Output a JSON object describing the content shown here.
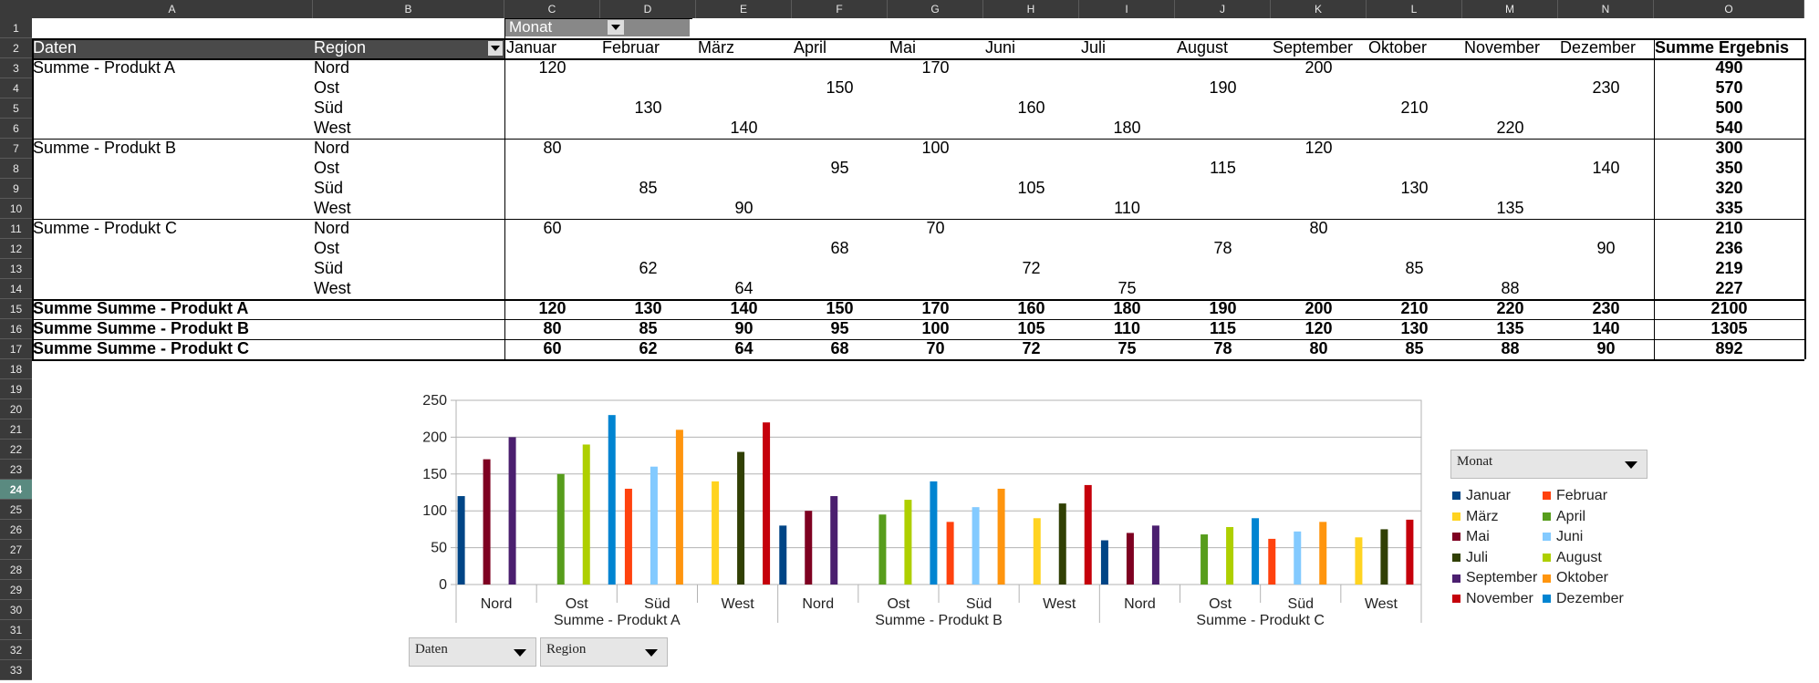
{
  "column_headers": [
    "A",
    "B",
    "C",
    "D",
    "E",
    "F",
    "G",
    "H",
    "I",
    "J",
    "K",
    "L",
    "M",
    "N",
    "O"
  ],
  "row_headers": [
    "1",
    "2",
    "3",
    "4",
    "5",
    "6",
    "7",
    "8",
    "9",
    "10",
    "11",
    "12",
    "13",
    "14",
    "15",
    "16",
    "17",
    "18",
    "19",
    "20",
    "21",
    "22",
    "23",
    "24",
    "25",
    "26",
    "27",
    "28",
    "29",
    "30",
    "31",
    "32",
    "33"
  ],
  "active_row": "24",
  "pivot": {
    "page_field": "Monat",
    "data_label": "Daten",
    "region_label": "Region",
    "months": [
      "Januar",
      "Februar",
      "März",
      "April",
      "Mai",
      "Juni",
      "Juli",
      "August",
      "September",
      "Oktober",
      "November",
      "Dezember"
    ],
    "total_label": "Summe Ergebnis",
    "groups": [
      {
        "label": "Summe - Produkt A",
        "rows": [
          {
            "region": "Nord",
            "cells": [
              "120",
              "",
              "",
              "",
              "170",
              "",
              "",
              "",
              "200",
              "",
              "",
              ""
            ],
            "total": "490"
          },
          {
            "region": "Ost",
            "cells": [
              "",
              "",
              "",
              "150",
              "",
              "",
              "",
              "190",
              "",
              "",
              "",
              "230"
            ],
            "total": "570"
          },
          {
            "region": "Süd",
            "cells": [
              "",
              "130",
              "",
              "",
              "",
              "160",
              "",
              "",
              "",
              "210",
              "",
              ""
            ],
            "total": "500"
          },
          {
            "region": "West",
            "cells": [
              "",
              "",
              "140",
              "",
              "",
              "",
              "180",
              "",
              "",
              "",
              "220",
              ""
            ],
            "total": "540"
          }
        ]
      },
      {
        "label": "Summe - Produkt B",
        "rows": [
          {
            "region": "Nord",
            "cells": [
              "80",
              "",
              "",
              "",
              "100",
              "",
              "",
              "",
              "120",
              "",
              "",
              ""
            ],
            "total": "300"
          },
          {
            "region": "Ost",
            "cells": [
              "",
              "",
              "",
              "95",
              "",
              "",
              "",
              "115",
              "",
              "",
              "",
              "140"
            ],
            "total": "350"
          },
          {
            "region": "Süd",
            "cells": [
              "",
              "85",
              "",
              "",
              "",
              "105",
              "",
              "",
              "",
              "130",
              "",
              ""
            ],
            "total": "320"
          },
          {
            "region": "West",
            "cells": [
              "",
              "",
              "90",
              "",
              "",
              "",
              "110",
              "",
              "",
              "",
              "135",
              ""
            ],
            "total": "335"
          }
        ]
      },
      {
        "label": "Summe - Produkt C",
        "rows": [
          {
            "region": "Nord",
            "cells": [
              "60",
              "",
              "",
              "",
              "70",
              "",
              "",
              "",
              "80",
              "",
              "",
              ""
            ],
            "total": "210"
          },
          {
            "region": "Ost",
            "cells": [
              "",
              "",
              "",
              "68",
              "",
              "",
              "",
              "78",
              "",
              "",
              "",
              "90"
            ],
            "total": "236"
          },
          {
            "region": "Süd",
            "cells": [
              "",
              "62",
              "",
              "",
              "",
              "72",
              "",
              "",
              "",
              "85",
              "",
              ""
            ],
            "total": "219"
          },
          {
            "region": "West",
            "cells": [
              "",
              "",
              "64",
              "",
              "",
              "",
              "75",
              "",
              "",
              "",
              "88",
              ""
            ],
            "total": "227"
          }
        ]
      }
    ],
    "summary_rows": [
      {
        "label": "Summe Summe - Produkt A",
        "cells": [
          "120",
          "130",
          "140",
          "150",
          "170",
          "160",
          "180",
          "190",
          "200",
          "210",
          "220",
          "230"
        ],
        "total": "2100"
      },
      {
        "label": "Summe Summe - Produkt B",
        "cells": [
          "80",
          "85",
          "90",
          "95",
          "100",
          "105",
          "110",
          "115",
          "120",
          "130",
          "135",
          "140"
        ],
        "total": "1305"
      },
      {
        "label": "Summe Summe - Produkt C",
        "cells": [
          "60",
          "62",
          "64",
          "68",
          "70",
          "72",
          "75",
          "78",
          "80",
          "85",
          "88",
          "90"
        ],
        "total": "892"
      }
    ]
  },
  "chart_buttons": {
    "page": "Monat",
    "data": "Daten",
    "region": "Region"
  },
  "chart_data": {
    "type": "bar",
    "ylim": [
      0,
      250
    ],
    "yticks": [
      "0",
      "50",
      "100",
      "150",
      "200",
      "250"
    ],
    "groups": [
      "Summe - Produkt A",
      "Summe - Produkt B",
      "Summe - Produkt C"
    ],
    "regions": [
      "Nord",
      "Ost",
      "Süd",
      "West"
    ],
    "series": [
      {
        "name": "Januar",
        "color": "#004586",
        "values": [
          120,
          null,
          null,
          null,
          80,
          null,
          null,
          null,
          60,
          null,
          null,
          null
        ]
      },
      {
        "name": "Februar",
        "color": "#ff420e",
        "values": [
          null,
          null,
          130,
          null,
          null,
          null,
          85,
          null,
          null,
          null,
          62,
          null
        ]
      },
      {
        "name": "März",
        "color": "#ffd320",
        "values": [
          null,
          null,
          null,
          140,
          null,
          null,
          null,
          90,
          null,
          null,
          null,
          64
        ]
      },
      {
        "name": "April",
        "color": "#579d1c",
        "values": [
          null,
          150,
          null,
          null,
          null,
          95,
          null,
          null,
          null,
          68,
          null,
          null
        ]
      },
      {
        "name": "Mai",
        "color": "#7e0021",
        "values": [
          170,
          null,
          null,
          null,
          100,
          null,
          null,
          null,
          70,
          null,
          null,
          null
        ]
      },
      {
        "name": "Juni",
        "color": "#83caff",
        "values": [
          null,
          null,
          160,
          null,
          null,
          null,
          105,
          null,
          null,
          null,
          72,
          null
        ]
      },
      {
        "name": "Juli",
        "color": "#314004",
        "values": [
          null,
          null,
          null,
          180,
          null,
          null,
          null,
          110,
          null,
          null,
          null,
          75
        ]
      },
      {
        "name": "August",
        "color": "#aecf00",
        "values": [
          null,
          190,
          null,
          null,
          null,
          115,
          null,
          null,
          null,
          78,
          null,
          null
        ]
      },
      {
        "name": "September",
        "color": "#4b1f6f",
        "values": [
          200,
          null,
          null,
          null,
          120,
          null,
          null,
          null,
          80,
          null,
          null,
          null
        ]
      },
      {
        "name": "Oktober",
        "color": "#ff950e",
        "values": [
          null,
          null,
          210,
          null,
          null,
          null,
          130,
          null,
          null,
          null,
          85,
          null
        ]
      },
      {
        "name": "November",
        "color": "#c5000b",
        "values": [
          null,
          null,
          null,
          220,
          null,
          null,
          null,
          135,
          null,
          null,
          null,
          88
        ]
      },
      {
        "name": "Dezember",
        "color": "#0084d1",
        "values": [
          null,
          230,
          null,
          null,
          null,
          140,
          null,
          null,
          null,
          90,
          null,
          null
        ]
      }
    ],
    "grid": true,
    "legend": "right"
  }
}
